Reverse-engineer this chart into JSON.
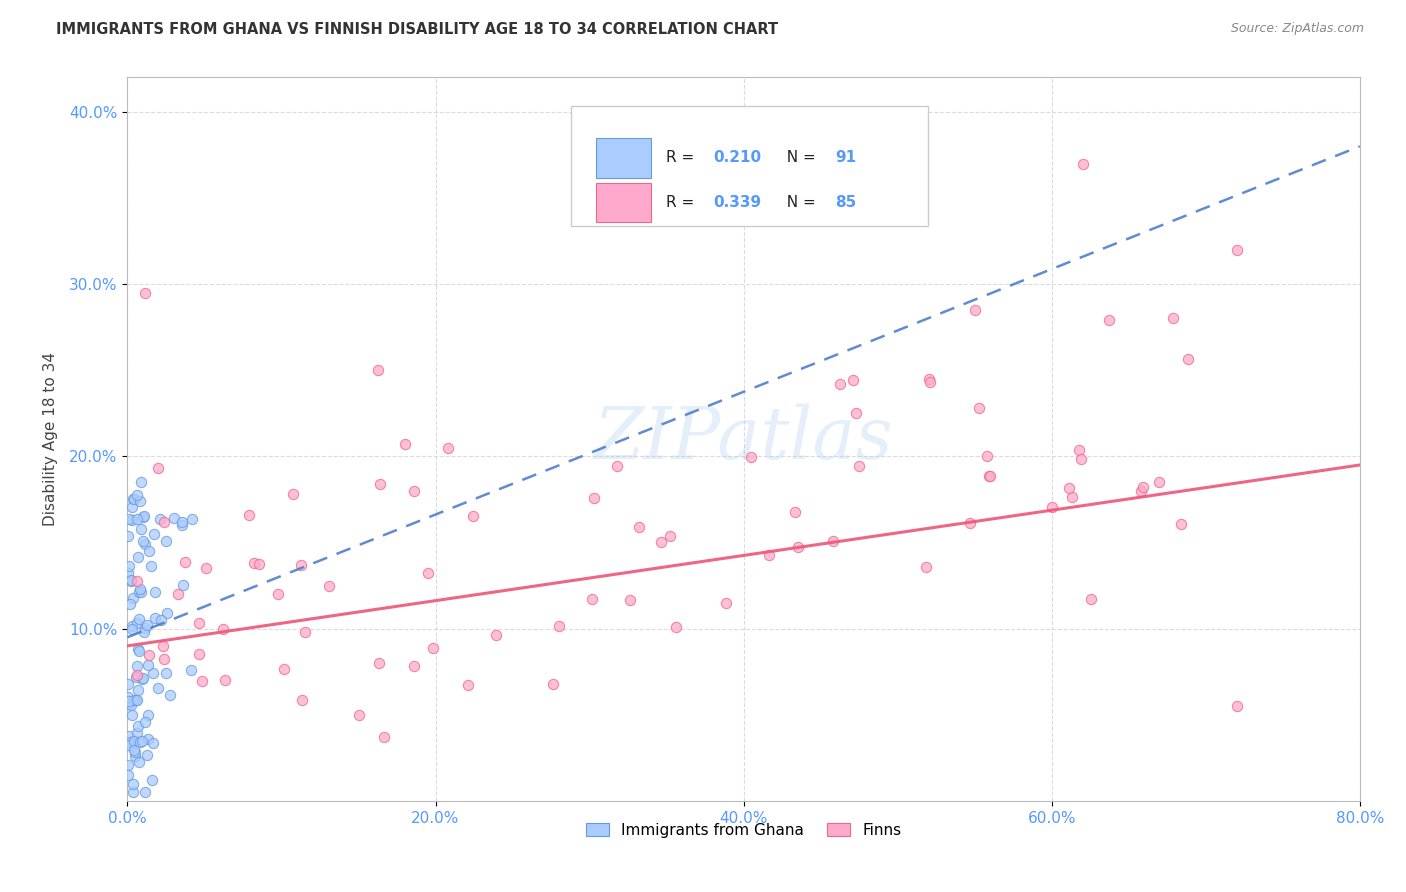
{
  "title": "IMMIGRANTS FROM GHANA VS FINNISH DISABILITY AGE 18 TO 34 CORRELATION CHART",
  "source": "Source: ZipAtlas.com",
  "ylabel": "Disability Age 18 to 34",
  "xlim": [
    0.0,
    0.8
  ],
  "ylim": [
    0.0,
    0.42
  ],
  "legend_label1": "Immigrants from Ghana",
  "legend_label2": "Finns",
  "R1": "0.210",
  "N1": "91",
  "R2": "0.339",
  "N2": "85",
  "color1_face": "#AACCFF",
  "color1_edge": "#6699DD",
  "color2_face": "#FFAACC",
  "color2_edge": "#EE6688",
  "trendline1_color": "#4477CC",
  "trendline2_color": "#EE5577",
  "watermark": "ZIPatlas",
  "tick_color": "#5599FF",
  "grid_color": "#CCCCCC",
  "title_color": "#333333",
  "source_color": "#888888"
}
